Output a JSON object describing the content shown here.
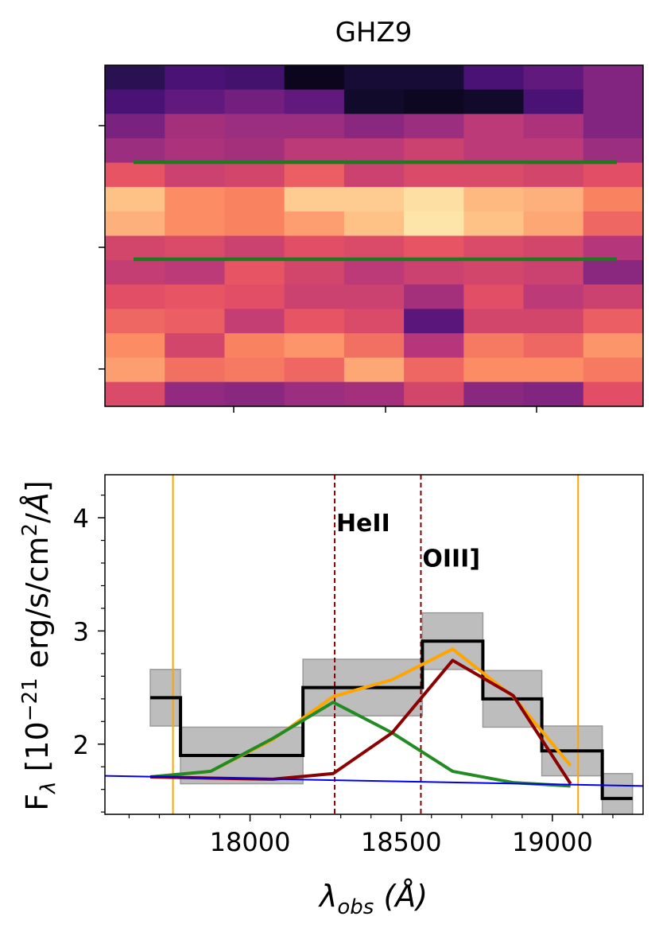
{
  "title": "GHZ9",
  "chart_data": [
    {
      "type": "heatmap",
      "colormap": "magma",
      "columns": 9,
      "rows": 14,
      "values": [
        [
          0.16,
          0.24,
          0.22,
          0.05,
          0.1,
          0.1,
          0.24,
          0.3,
          0.38
        ],
        [
          0.24,
          0.3,
          0.34,
          0.3,
          0.08,
          0.06,
          0.08,
          0.24,
          0.38
        ],
        [
          0.36,
          0.46,
          0.44,
          0.44,
          0.4,
          0.44,
          0.52,
          0.48,
          0.38
        ],
        [
          0.44,
          0.48,
          0.46,
          0.52,
          0.52,
          0.56,
          0.52,
          0.52,
          0.44
        ],
        [
          0.64,
          0.56,
          0.58,
          0.66,
          0.56,
          0.6,
          0.6,
          0.58,
          0.62
        ],
        [
          0.88,
          0.76,
          0.74,
          0.9,
          0.9,
          0.94,
          0.86,
          0.84,
          0.74
        ],
        [
          0.84,
          0.76,
          0.74,
          0.8,
          0.88,
          0.95,
          0.88,
          0.82,
          0.68
        ],
        [
          0.58,
          0.6,
          0.56,
          0.62,
          0.6,
          0.64,
          0.6,
          0.58,
          0.5
        ],
        [
          0.54,
          0.52,
          0.64,
          0.58,
          0.52,
          0.56,
          0.58,
          0.56,
          0.4
        ],
        [
          0.62,
          0.64,
          0.62,
          0.56,
          0.56,
          0.46,
          0.62,
          0.52,
          0.56
        ],
        [
          0.68,
          0.66,
          0.54,
          0.64,
          0.6,
          0.28,
          0.58,
          0.58,
          0.66
        ],
        [
          0.76,
          0.58,
          0.74,
          0.78,
          0.7,
          0.5,
          0.72,
          0.68,
          0.78
        ],
        [
          0.8,
          0.7,
          0.72,
          0.68,
          0.82,
          0.68,
          0.76,
          0.76,
          0.72
        ],
        [
          0.6,
          0.42,
          0.4,
          0.44,
          0.46,
          0.58,
          0.4,
          0.38,
          0.62
        ]
      ],
      "y_ticks_labels": [
        "",
        "",
        ""
      ],
      "x_ticks_labels": [
        "",
        "",
        ""
      ],
      "extraction_lines_color": "#1f7a1f"
    },
    {
      "type": "line",
      "xlabel": "λ_obs (Å)",
      "ylabel": "F_λ [10^-21 erg/s/cm^2/Å]",
      "xlim": [
        17520,
        19300
      ],
      "ylim": [
        1.38,
        4.38
      ],
      "x_ticks": [
        18000,
        18500,
        19000
      ],
      "x_tick_labels": [
        "18000",
        "18500",
        "19000"
      ],
      "y_ticks": [
        2,
        3,
        4
      ],
      "y_tick_labels": [
        "2",
        "3",
        "4"
      ],
      "y_minor_ticks": [
        1.4,
        1.6,
        1.8,
        2.2,
        2.4,
        2.6,
        2.8,
        3.2,
        3.4,
        3.6,
        3.8,
        4.2
      ],
      "x_minor_ticks": [
        17600,
        17700,
        17800,
        17900,
        18100,
        18200,
        18300,
        18400,
        18600,
        18700,
        18800,
        18900,
        19100,
        19200
      ],
      "step_spectrum": {
        "color": "#000000",
        "bins": [
          {
            "x0": 17670,
            "x1": 17770,
            "y": 2.41,
            "err": 0.25
          },
          {
            "x0": 17770,
            "x1": 18175,
            "y": 1.9,
            "err": 0.25
          },
          {
            "x0": 18175,
            "x1": 18570,
            "y": 2.5,
            "err": 0.25
          },
          {
            "x0": 18570,
            "x1": 18770,
            "y": 2.91,
            "err": 0.25
          },
          {
            "x0": 18770,
            "x1": 18965,
            "y": 2.4,
            "err": 0.25
          },
          {
            "x0": 18965,
            "x1": 19165,
            "y": 1.94,
            "err": 0.22
          },
          {
            "x0": 19165,
            "x1": 19265,
            "y": 1.52,
            "err": 0.22
          }
        ],
        "err_color": "#bdbdbd"
      },
      "series": [
        {
          "color": "#ffa500",
          "x": [
            17670,
            17870,
            18075,
            18275,
            18470,
            18670,
            18870,
            19060
          ],
          "y": [
            1.71,
            1.76,
            2.04,
            2.42,
            2.57,
            2.84,
            2.42,
            1.81
          ]
        },
        {
          "color": "#228b22",
          "x": [
            17670,
            17870,
            18075,
            18275,
            18470,
            18670,
            18870,
            19060
          ],
          "y": [
            1.71,
            1.76,
            2.05,
            2.37,
            2.1,
            1.76,
            1.66,
            1.63
          ]
        },
        {
          "color": "#8b0000",
          "x": [
            17670,
            17870,
            18075,
            18275,
            18470,
            18670,
            18870,
            19060
          ],
          "y": [
            1.71,
            1.7,
            1.69,
            1.74,
            2.1,
            2.74,
            2.43,
            1.65
          ]
        },
        {
          "color": "#0000ee",
          "x": [
            17520,
            19300
          ],
          "y": [
            1.72,
            1.63
          ]
        }
      ],
      "vlines": [
        {
          "x": 17745,
          "color": "#ffa500",
          "style": "solid"
        },
        {
          "x": 19085,
          "color": "#ffa500",
          "style": "solid"
        },
        {
          "x": 18280,
          "color": "#8b0000",
          "style": "dashed"
        },
        {
          "x": 18565,
          "color": "#8b0000",
          "style": "dashed"
        }
      ],
      "annotations": [
        {
          "text": "HeII",
          "x": 18285,
          "y": 3.88
        },
        {
          "text": "OIII]",
          "x": 18570,
          "y": 3.57
        }
      ]
    }
  ]
}
